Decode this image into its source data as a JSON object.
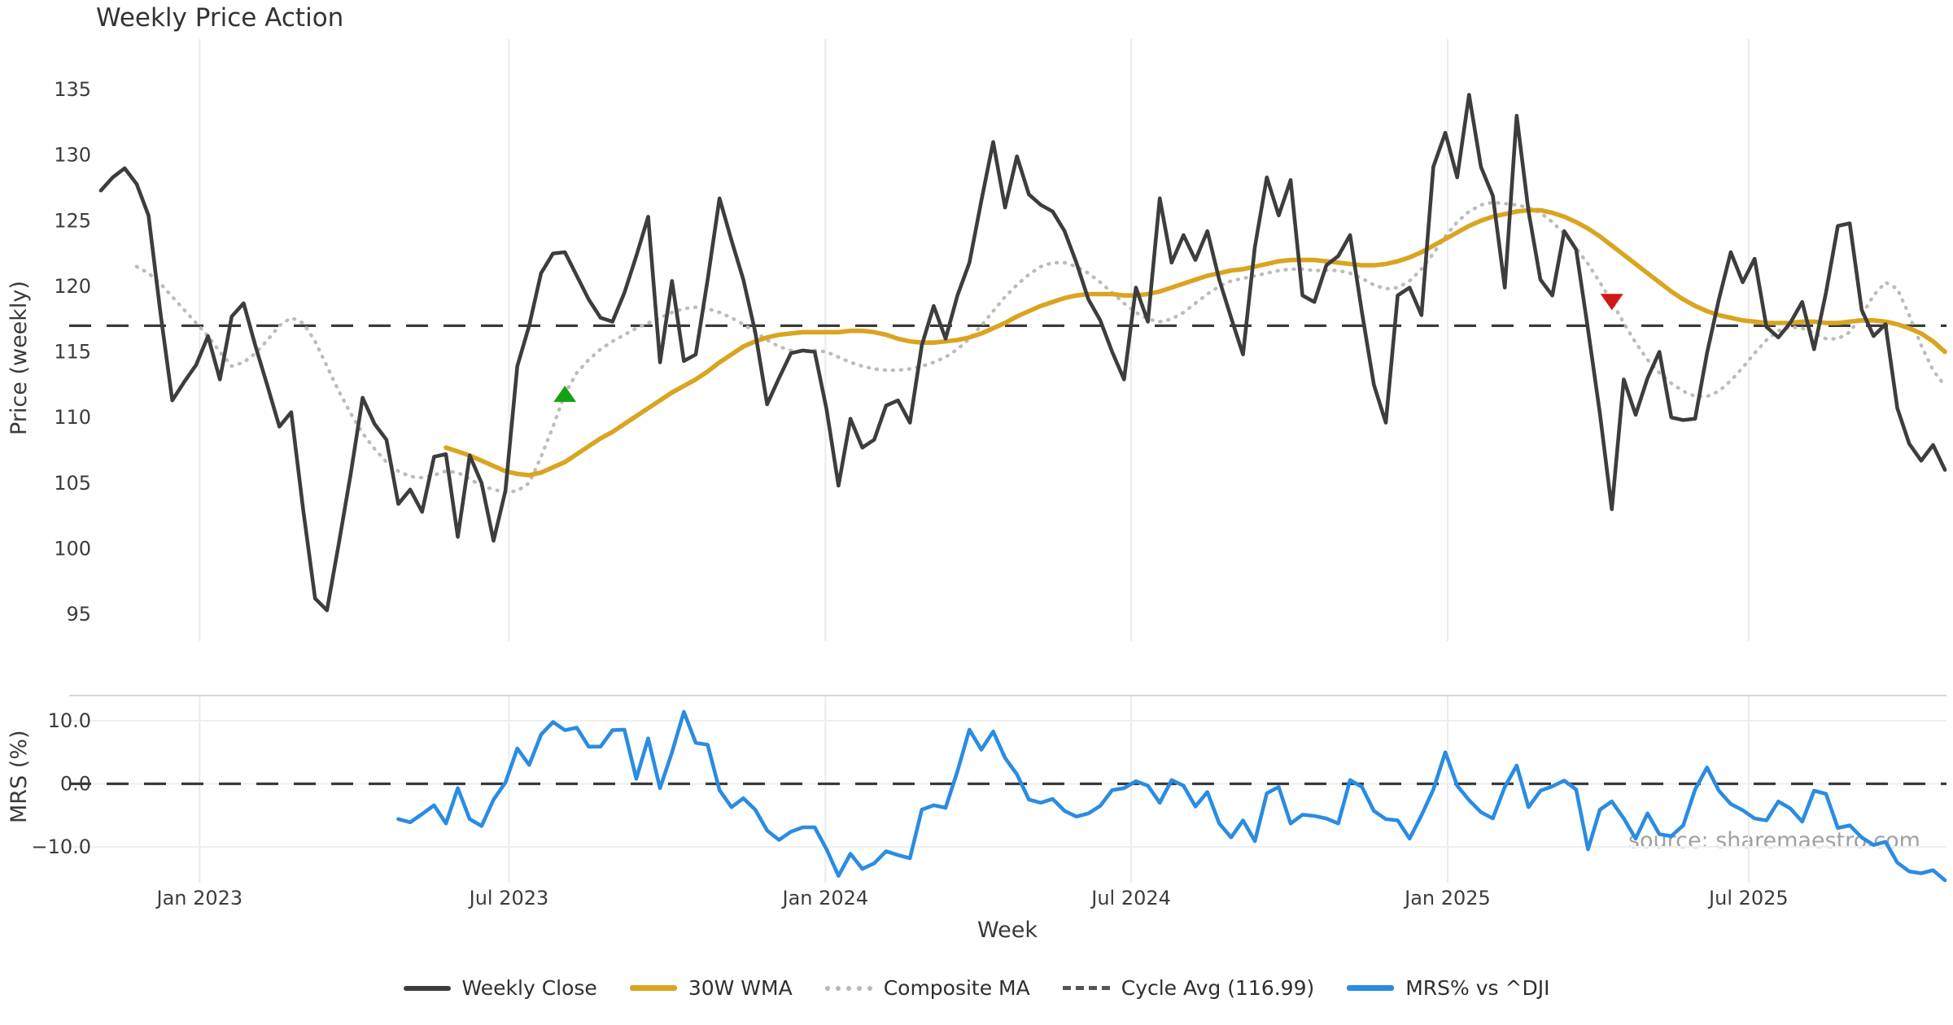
{
  "title": {
    "text": "Weekly Price Action"
  },
  "axes": {
    "price_ylabel": "Price (weekly)",
    "mrs_ylabel": "MRS (%)",
    "xlabel": "Week"
  },
  "source_note": "source: sharemaestro.com",
  "legend": {
    "items": [
      {
        "label": "Weekly Close",
        "swatch": "solid-dark"
      },
      {
        "label": "30W WMA",
        "swatch": "solid-gold"
      },
      {
        "label": "Composite MA",
        "swatch": "dotted-gray"
      },
      {
        "label": "Cycle Avg (116.99)",
        "swatch": "dashed-dark"
      },
      {
        "label": "MRS% vs ^DJI",
        "swatch": "solid-blue"
      }
    ]
  },
  "colors": {
    "weekly_close": "#3d3d3d",
    "wma": "#d9a521",
    "composite": "#bcbcbc",
    "cycle_avg": "#3a3a3a",
    "mrs": "#2a8ce2",
    "grid": "#ebebeb",
    "panel_border": "#d7d7d7",
    "tick_text": "#3c3c3c",
    "signal_up": "#15a115",
    "signal_down": "#cf1717"
  },
  "chart_data": [
    {
      "type": "line",
      "panel": "price",
      "title": "Weekly Price Action",
      "ylabel": "Price (weekly)",
      "x_unit": "week_index",
      "weeks_total": 156,
      "ylim": [
        92.9,
        138.9
      ],
      "yticks": [
        95,
        100,
        105,
        110,
        115,
        120,
        125,
        130,
        135
      ],
      "xticks": [
        {
          "label": "Jan 2023",
          "week": 8.3
        },
        {
          "label": "Jul 2023",
          "week": 34.3
        },
        {
          "label": "Jan 2024",
          "week": 60.9
        },
        {
          "label": "Jul 2024",
          "week": 86.6
        },
        {
          "label": "Jan 2025",
          "week": 113.2
        },
        {
          "label": "Jul 2025",
          "week": 138.5
        }
      ],
      "grid": "vertical-only",
      "cycle_avg_value": 116.99,
      "series": [
        {
          "name": "Weekly Close",
          "style": "solid",
          "color": "#3d3d3d",
          "start_week": 0,
          "values": [
            127.3,
            128.3,
            129.0,
            127.8,
            125.4,
            118.0,
            111.3,
            112.7,
            114.0,
            116.2,
            112.9,
            117.7,
            118.7,
            115.4,
            112.4,
            109.3,
            110.4,
            103.0,
            96.2,
            95.3,
            100.4,
            105.7,
            111.5,
            109.5,
            108.3,
            103.4,
            104.5,
            102.8,
            107.0,
            107.2,
            100.9,
            107.1,
            105.0,
            100.6,
            104.4,
            113.9,
            117.0,
            121.0,
            122.5,
            122.6,
            120.8,
            119.0,
            117.6,
            117.3,
            119.5,
            122.3,
            125.3,
            114.2,
            120.4,
            114.3,
            114.8,
            120.5,
            126.7,
            123.5,
            120.5,
            116.5,
            111.0,
            113.0,
            114.9,
            115.1,
            115.0,
            110.6,
            104.8,
            109.9,
            107.7,
            108.3,
            110.9,
            111.3,
            109.6,
            115.5,
            118.5,
            116.0,
            119.3,
            121.8,
            126.5,
            131.0,
            126.0,
            129.9,
            127.0,
            126.2,
            125.7,
            124.2,
            121.8,
            119.0,
            117.4,
            115.0,
            112.9,
            119.9,
            117.3,
            126.7,
            121.8,
            123.9,
            122.0,
            124.2,
            120.5,
            117.6,
            114.8,
            123.0,
            128.3,
            125.4,
            128.1,
            119.3,
            118.8,
            121.6,
            122.3,
            123.9,
            118.0,
            112.5,
            109.6,
            119.3,
            119.9,
            117.8,
            129.1,
            131.7,
            128.3,
            134.6,
            129.1,
            126.9,
            119.9,
            133.0,
            125.7,
            120.5,
            119.3,
            124.2,
            122.8,
            116.7,
            110.3,
            103.0,
            112.9,
            110.2,
            113.0,
            115.0,
            110.0,
            109.8,
            109.9,
            114.9,
            119.0,
            122.6,
            120.3,
            122.1,
            116.9,
            116.1,
            117.2,
            118.8,
            115.2,
            119.5,
            124.6,
            124.8,
            118.2,
            116.2,
            117.1,
            110.7,
            108.0,
            106.7,
            107.9,
            106.0
          ]
        },
        {
          "name": "30W WMA",
          "style": "solid",
          "color": "#d9a521",
          "start_week": 29,
          "values": [
            107.7,
            107.4,
            107.1,
            106.7,
            106.3,
            105.9,
            105.7,
            105.6,
            105.8,
            106.2,
            106.6,
            107.2,
            107.8,
            108.4,
            108.9,
            109.5,
            110.1,
            110.7,
            111.3,
            111.9,
            112.4,
            112.9,
            113.5,
            114.2,
            114.8,
            115.4,
            115.8,
            116.1,
            116.3,
            116.4,
            116.5,
            116.5,
            116.5,
            116.5,
            116.6,
            116.6,
            116.5,
            116.3,
            116.0,
            115.8,
            115.7,
            115.7,
            115.8,
            115.9,
            116.1,
            116.4,
            116.8,
            117.2,
            117.7,
            118.1,
            118.5,
            118.8,
            119.1,
            119.3,
            119.4,
            119.4,
            119.4,
            119.3,
            119.3,
            119.4,
            119.6,
            119.9,
            120.2,
            120.5,
            120.8,
            121.0,
            121.2,
            121.3,
            121.5,
            121.7,
            121.9,
            122.0,
            122.0,
            122.0,
            121.9,
            121.8,
            121.7,
            121.6,
            121.6,
            121.7,
            121.9,
            122.2,
            122.6,
            123.1,
            123.6,
            124.1,
            124.6,
            125.0,
            125.3,
            125.5,
            125.7,
            125.8,
            125.8,
            125.6,
            125.3,
            124.9,
            124.4,
            123.8,
            123.1,
            122.4,
            121.7,
            121.0,
            120.3,
            119.6,
            119.0,
            118.5,
            118.1,
            117.8,
            117.6,
            117.4,
            117.3,
            117.2,
            117.2,
            117.2,
            117.3,
            117.3,
            117.2,
            117.2,
            117.3,
            117.4,
            117.4,
            117.3,
            117.1,
            116.8,
            116.4,
            115.8,
            115.0
          ]
        },
        {
          "name": "Composite MA",
          "style": "dotted",
          "color": "#bcbcbc",
          "start_week": 3,
          "values": [
            121.5,
            121.0,
            120.2,
            119.2,
            118.2,
            117.2,
            116.2,
            115.0,
            113.9,
            114.2,
            114.9,
            115.9,
            117.0,
            117.6,
            117.2,
            115.8,
            113.9,
            112.0,
            110.3,
            108.8,
            107.6,
            106.6,
            105.9,
            105.5,
            105.4,
            105.6,
            105.9,
            105.8,
            105.3,
            104.8,
            104.5,
            104.3,
            104.4,
            105.0,
            107.0,
            109.3,
            111.8,
            113.4,
            114.4,
            115.2,
            115.8,
            116.3,
            116.8,
            117.2,
            117.6,
            118.0,
            118.3,
            118.4,
            118.3,
            118.0,
            117.6,
            117.1,
            116.5,
            115.9,
            115.4,
            115.1,
            115.0,
            115.1,
            115.0,
            114.6,
            114.2,
            113.9,
            113.7,
            113.6,
            113.6,
            113.7,
            113.9,
            114.2,
            114.6,
            115.2,
            116.0,
            117.0,
            118.1,
            119.2,
            120.1,
            120.9,
            121.5,
            121.8,
            121.8,
            121.5,
            121.0,
            120.3,
            119.5,
            118.7,
            118.0,
            117.5,
            117.3,
            117.5,
            118.0,
            118.7,
            119.4,
            120.0,
            120.4,
            120.6,
            120.8,
            121.0,
            121.2,
            121.3,
            121.3,
            121.2,
            121.2,
            121.2,
            121.0,
            120.6,
            120.1,
            119.8,
            119.9,
            120.4,
            121.3,
            122.5,
            123.8,
            124.9,
            125.7,
            126.2,
            126.4,
            126.3,
            126.2,
            126.0,
            125.6,
            124.9,
            124.0,
            122.9,
            121.7,
            120.3,
            118.8,
            117.2,
            115.7,
            114.4,
            113.4,
            112.6,
            112.0,
            111.6,
            111.6,
            112.0,
            112.8,
            113.8,
            114.9,
            115.9,
            116.6,
            116.9,
            116.8,
            116.4,
            116.0,
            116.0,
            116.5,
            117.8,
            119.3,
            120.3,
            119.8,
            117.8,
            115.5,
            113.6,
            112.4
          ]
        },
        {
          "name": "Cycle Avg",
          "style": "dashed",
          "color": "#3a3a3a",
          "constant_value": 116.99
        }
      ],
      "signals": [
        {
          "name": "buy-signal",
          "shape": "triangle-up",
          "color": "#15a115",
          "week": 39,
          "price": 111.8
        },
        {
          "name": "sell-signal",
          "shape": "triangle-down",
          "color": "#cf1717",
          "week": 127,
          "price": 118.8
        }
      ]
    },
    {
      "type": "line",
      "panel": "mrs",
      "ylabel": "MRS (%)",
      "x_unit": "week_index",
      "ylim": [
        -15.7,
        14.0
      ],
      "yticks": [
        {
          "label": "10.0",
          "value": 10
        },
        {
          "label": "0.0",
          "value": 0
        },
        {
          "label": "−10.0",
          "value": -10
        }
      ],
      "zero_line_dashed": true,
      "series": [
        {
          "name": "MRS% vs ^DJI",
          "style": "solid",
          "color": "#2a8ce2",
          "start_week": 25,
          "values": [
            -5.6,
            -6.1,
            -4.8,
            -3.4,
            -6.3,
            -0.7,
            -5.6,
            -6.7,
            -2.5,
            0.2,
            5.6,
            3.0,
            7.8,
            9.8,
            8.5,
            8.9,
            5.9,
            5.9,
            8.5,
            8.6,
            0.8,
            7.2,
            -0.7,
            5.0,
            11.4,
            6.5,
            6.2,
            -1.0,
            -3.7,
            -2.3,
            -4.1,
            -7.4,
            -8.9,
            -7.6,
            -6.9,
            -6.9,
            -10.4,
            -14.6,
            -11.1,
            -13.5,
            -12.6,
            -10.7,
            -11.3,
            -11.8,
            -4.1,
            -3.4,
            -3.8,
            2.0,
            8.6,
            5.4,
            8.3,
            4.1,
            1.5,
            -2.5,
            -3.0,
            -2.4,
            -4.3,
            -5.2,
            -4.7,
            -3.5,
            -1.0,
            -0.7,
            0.4,
            -0.3,
            -3.0,
            0.6,
            -0.3,
            -3.6,
            -1.3,
            -6.3,
            -8.5,
            -5.8,
            -9.1,
            -1.5,
            -0.5,
            -6.3,
            -4.9,
            -5.1,
            -5.5,
            -6.3,
            0.6,
            -0.5,
            -4.3,
            -5.6,
            -5.8,
            -8.7,
            -5.0,
            -0.9,
            5.0,
            -0.3,
            -2.6,
            -4.5,
            -5.5,
            -0.5,
            2.9,
            -3.7,
            -1.1,
            -0.4,
            0.5,
            -0.9,
            -10.4,
            -4.1,
            -2.8,
            -5.5,
            -8.7,
            -4.7,
            -8.0,
            -8.3,
            -6.6,
            -0.9,
            2.6,
            -1.1,
            -3.2,
            -4.2,
            -5.5,
            -5.8,
            -2.8,
            -3.9,
            -6.0,
            -1.1,
            -1.6,
            -7.0,
            -6.6,
            -8.5,
            -9.7,
            -9.2,
            -12.5,
            -13.9,
            -14.2,
            -13.7,
            -15.3
          ]
        }
      ]
    }
  ]
}
